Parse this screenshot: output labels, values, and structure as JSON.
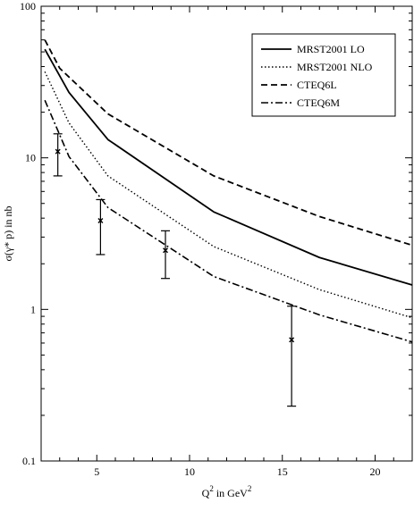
{
  "chart_data": {
    "type": "line",
    "title": "",
    "xlabel": "Q² in GeV²",
    "ylabel": "σ(γ* p) in nb",
    "xlabel_parts": {
      "base": "Q",
      "sup": "2",
      "mid": " in GeV",
      "sup2": "2"
    },
    "ylabel_text": "σ(γ* p) in nb",
    "x_scale": "linear",
    "y_scale": "log",
    "xlim": [
      2,
      22
    ],
    "ylim": [
      0.1,
      100
    ],
    "x_ticks": [
      5,
      10,
      15,
      20
    ],
    "y_ticks": [
      0.1,
      1,
      10,
      100
    ],
    "x_tick_labels": [
      "5",
      "10",
      "15",
      "20"
    ],
    "y_tick_labels": [
      "0.1",
      "1",
      "10",
      "100"
    ],
    "grid": false,
    "legend_position": "top-right",
    "series": [
      {
        "name": "MRST2001 LO",
        "style": "solid",
        "color": "#000000",
        "points": [
          [
            2.2,
            52
          ],
          [
            3.5,
            27
          ],
          [
            5.6,
            13.2
          ],
          [
            11.3,
            4.4
          ],
          [
            17,
            2.2
          ],
          [
            22,
            1.45
          ]
        ]
      },
      {
        "name": "MRST2001 NLO",
        "style": "dotted",
        "color": "#000000",
        "points": [
          [
            2.2,
            37
          ],
          [
            3.5,
            17
          ],
          [
            5.6,
            7.6
          ],
          [
            11.3,
            2.6
          ],
          [
            17,
            1.35
          ],
          [
            22,
            0.88
          ]
        ]
      },
      {
        "name": "CTEQ6L",
        "style": "dashed",
        "color": "#000000",
        "points": [
          [
            2.2,
            60
          ],
          [
            3.0,
            39
          ],
          [
            5.6,
            19.5
          ],
          [
            11.3,
            7.6
          ],
          [
            17,
            4.1
          ],
          [
            22,
            2.65
          ]
        ]
      },
      {
        "name": "CTEQ6M",
        "style": "dashdot",
        "color": "#000000",
        "points": [
          [
            2.2,
            24
          ],
          [
            3.5,
            10.2
          ],
          [
            5.6,
            4.7
          ],
          [
            11.3,
            1.65
          ],
          [
            17,
            0.92
          ],
          [
            22,
            0.61
          ]
        ]
      }
    ],
    "data_points": [
      {
        "x": 2.9,
        "y": 11.0,
        "y_low": 7.6,
        "y_high": 14.4
      },
      {
        "x": 5.2,
        "y": 3.85,
        "y_low": 2.3,
        "y_high": 5.3
      },
      {
        "x": 8.7,
        "y": 2.45,
        "y_low": 1.6,
        "y_high": 3.3
      },
      {
        "x": 15.5,
        "y": 0.63,
        "y_low": 0.23,
        "y_high": 1.05
      }
    ]
  }
}
